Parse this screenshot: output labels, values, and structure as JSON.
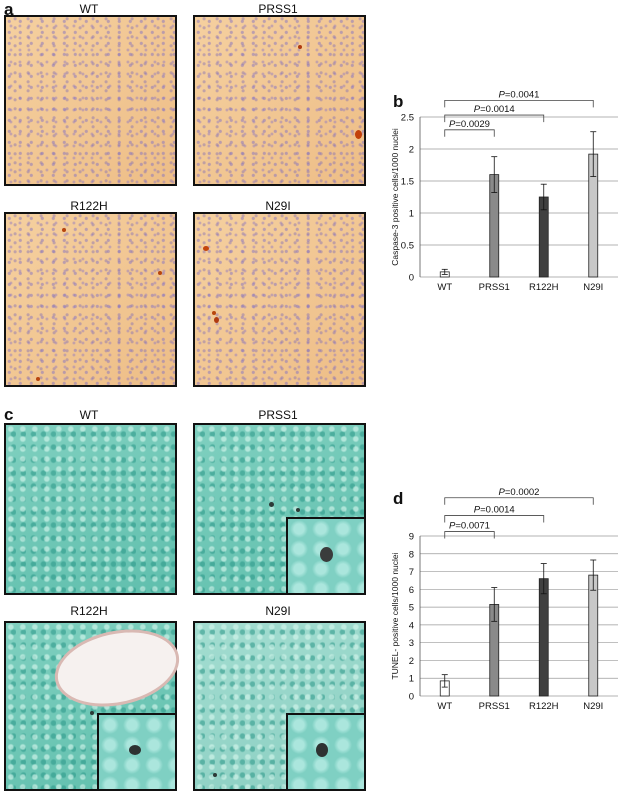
{
  "panels": {
    "a": {
      "letter": "a",
      "labels": [
        "WT",
        "PRSS1",
        "R122H",
        "N29I"
      ]
    },
    "b": {
      "letter": "b"
    },
    "c": {
      "letter": "c",
      "labels": [
        "WT",
        "PRSS1",
        "R122H",
        "N29I"
      ]
    },
    "d": {
      "letter": "d"
    }
  },
  "chart_data": [
    {
      "type": "bar",
      "panel": "b",
      "categories": [
        "WT",
        "PRSS1",
        "R122H",
        "N29I"
      ],
      "values": [
        0.08,
        1.6,
        1.25,
        1.92
      ],
      "error": [
        0.04,
        0.28,
        0.2,
        0.35
      ],
      "colors": [
        "#ffffff",
        "#8a8a8a",
        "#404040",
        "#c8c8c8"
      ],
      "ylabel": "Caspase-3 positive cells/1000 nuclei",
      "ylim": [
        0,
        2.5
      ],
      "yticks": [
        "0",
        "0.5",
        "1",
        "1.5",
        "2",
        "2.5"
      ],
      "grid": true,
      "annotations": [
        {
          "text": "P=0.0029",
          "from": "WT",
          "to": "PRSS1",
          "level": 2.3
        },
        {
          "text": "P=0.0014",
          "from": "WT",
          "to": "R122H",
          "level": 2.53
        },
        {
          "text": "P=0.0041",
          "from": "WT",
          "to": "N29I",
          "level": 2.76
        }
      ]
    },
    {
      "type": "bar",
      "panel": "d",
      "categories": [
        "WT",
        "PRSS1",
        "R122H",
        "N29I"
      ],
      "values": [
        0.85,
        5.15,
        6.6,
        6.8
      ],
      "error": [
        0.35,
        0.95,
        0.85,
        0.85
      ],
      "colors": [
        "#ffffff",
        "#8a8a8a",
        "#404040",
        "#c8c8c8"
      ],
      "ylabel": "TUNEL- positive cells/1000 nuclei",
      "ylim": [
        0,
        9
      ],
      "yticks": [
        "0",
        "1",
        "2",
        "3",
        "4",
        "5",
        "6",
        "7",
        "8",
        "9"
      ],
      "grid": true,
      "annotations": [
        {
          "text": "P=0.0071",
          "from": "WT",
          "to": "PRSS1",
          "level": 9.25
        },
        {
          "text": "P=0.0014",
          "from": "WT",
          "to": "R122H",
          "level": 10.15
        },
        {
          "text": "P=0.0002",
          "from": "WT",
          "to": "N29I",
          "level": 11.15
        }
      ]
    }
  ]
}
